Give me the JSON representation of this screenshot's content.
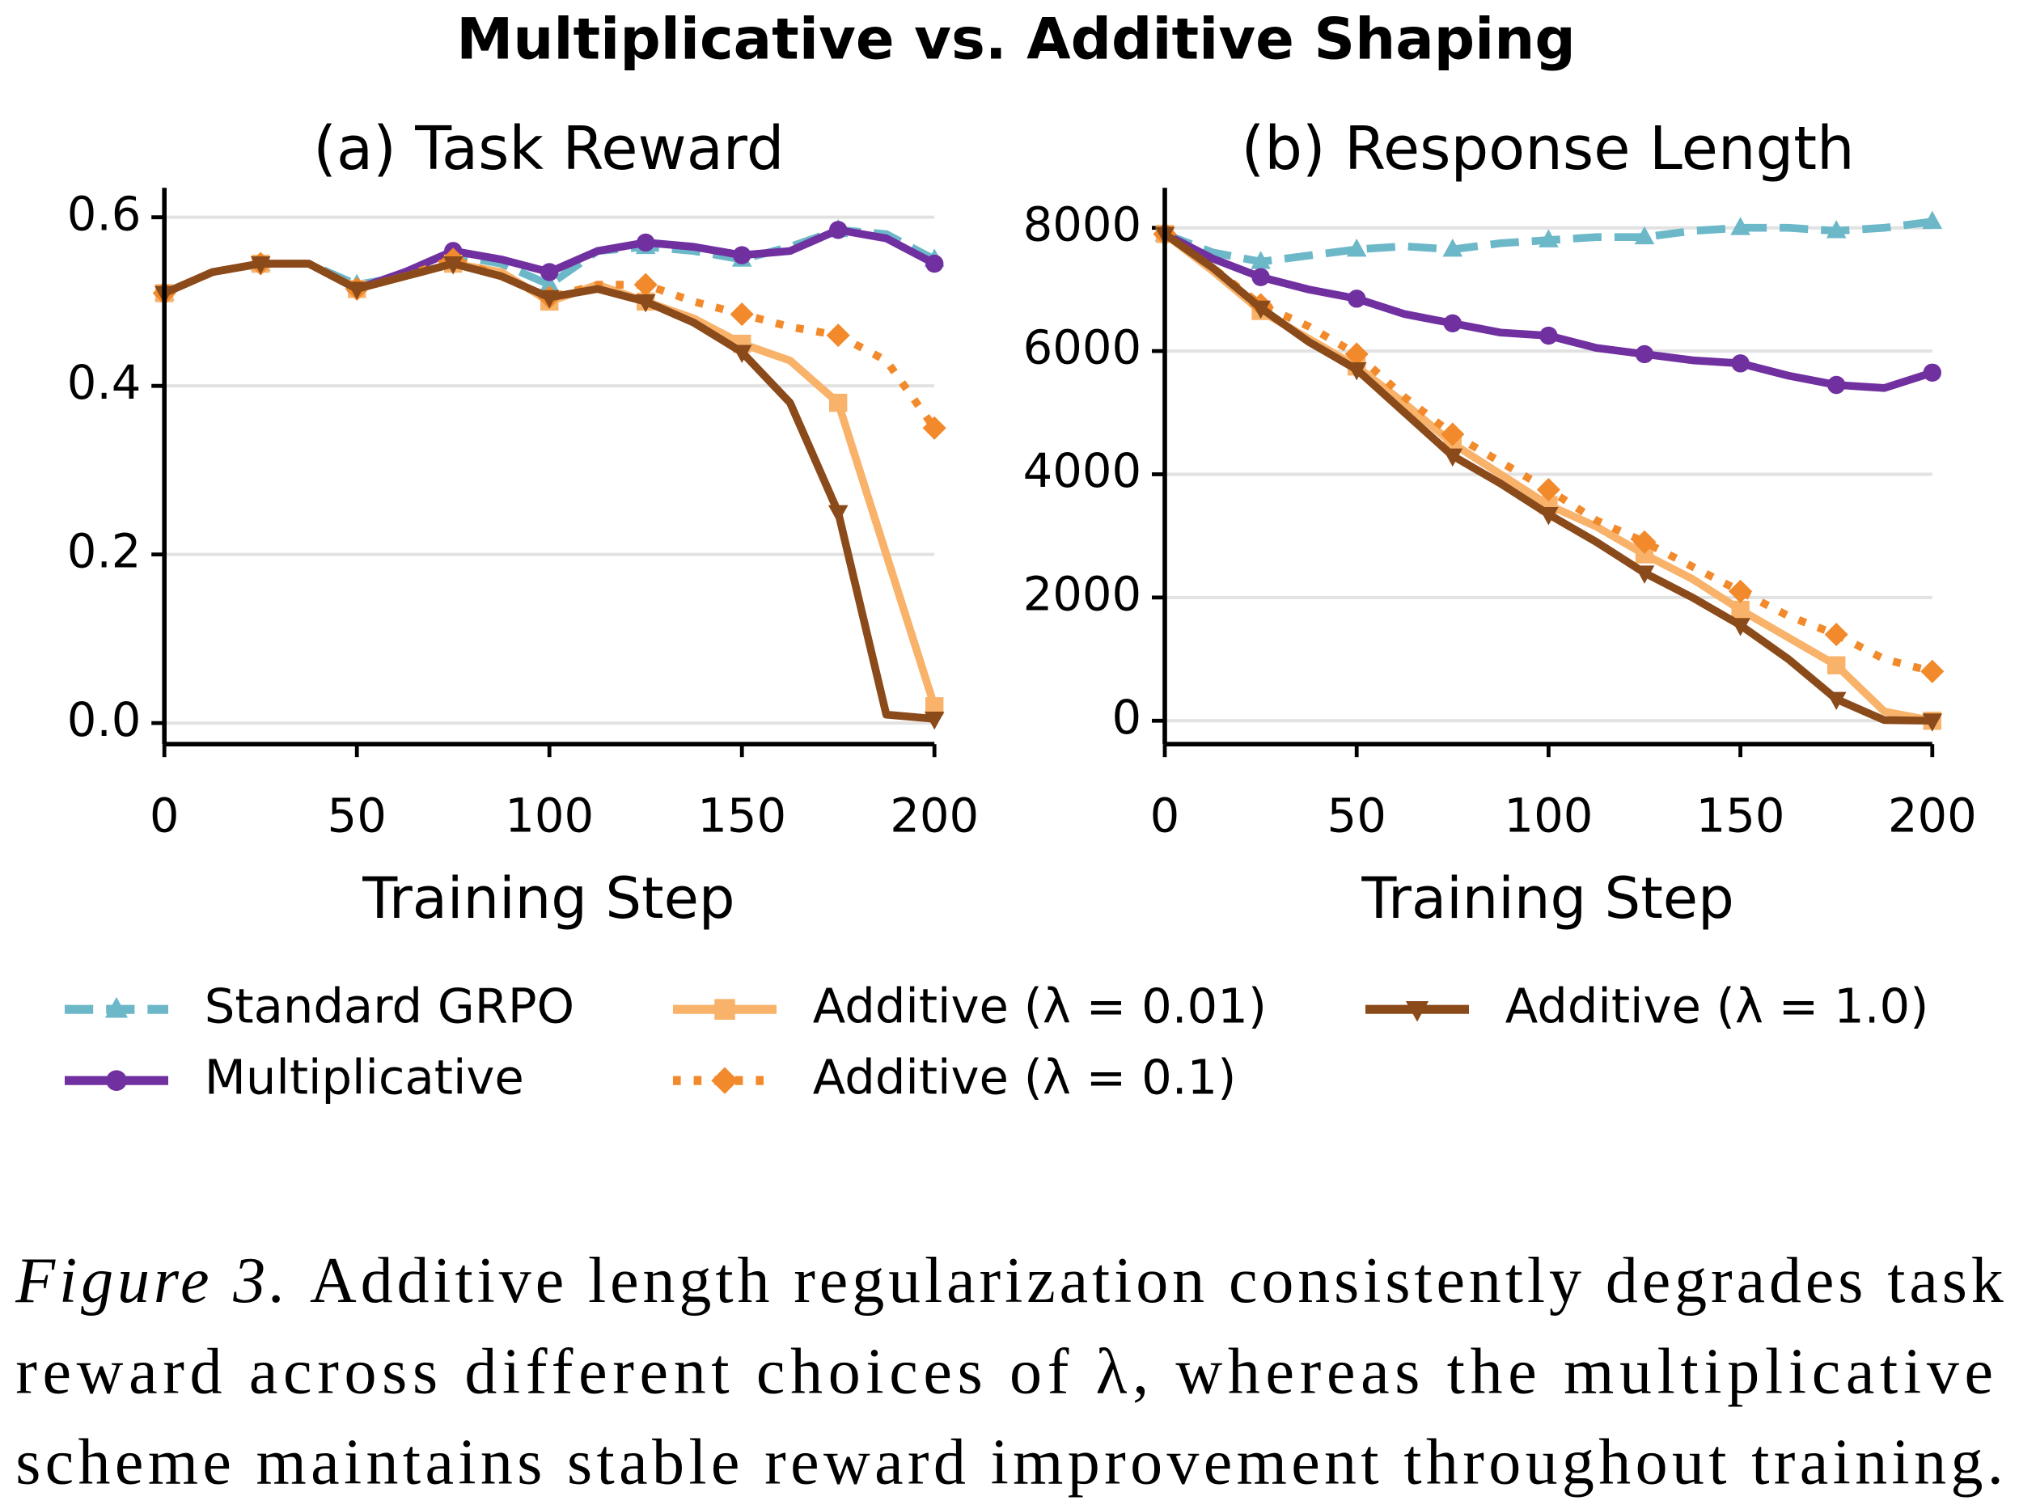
{
  "title": "Multiplicative vs. Additive Shaping",
  "chart_data": [
    {
      "type": "line",
      "title": "(a) Task Reward",
      "xlabel": "Training Step",
      "x": [
        0,
        12.5,
        25,
        37.5,
        50,
        62.5,
        75,
        87.5,
        100,
        112.5,
        125,
        137.5,
        150,
        162.5,
        175,
        187.5,
        200
      ],
      "xlim": [
        0,
        200
      ],
      "xticks": [
        0,
        50,
        100,
        150,
        200
      ],
      "ylim": [
        -0.025,
        0.635
      ],
      "yticks": [
        {
          "value": 0,
          "label": "0.0"
        },
        0.2,
        0.4,
        0.6
      ],
      "grid": true,
      "series": [
        {
          "name": "Standard GRPO",
          "color": "#6cb8c8",
          "style": "dashed",
          "marker": "triangle-up",
          "values": [
            0.51,
            0.535,
            0.545,
            0.545,
            0.52,
            0.53,
            0.555,
            0.545,
            0.52,
            0.56,
            0.565,
            0.56,
            0.55,
            0.565,
            0.585,
            0.58,
            0.55
          ]
        },
        {
          "name": "Multiplicative",
          "color": "#7030a0",
          "style": "solid",
          "marker": "circle",
          "values": [
            0.51,
            0.535,
            0.545,
            0.545,
            0.515,
            0.535,
            0.56,
            0.55,
            0.535,
            0.56,
            0.57,
            0.565,
            0.555,
            0.56,
            0.585,
            0.575,
            0.545
          ]
        },
        {
          "name": "Additive (λ = 0.01)",
          "color": "#f8b26a",
          "style": "solid",
          "marker": "square",
          "values": [
            0.51,
            0.535,
            0.545,
            0.545,
            0.515,
            0.53,
            0.545,
            0.535,
            0.5,
            0.52,
            0.5,
            0.48,
            0.45,
            0.43,
            0.38,
            0.2,
            0.02
          ]
        },
        {
          "name": "Additive (λ = 0.1)",
          "color": "#f28a2c",
          "style": "dotted",
          "marker": "diamond",
          "values": [
            0.51,
            0.535,
            0.545,
            0.545,
            0.515,
            0.53,
            0.55,
            0.53,
            0.505,
            0.52,
            0.52,
            0.5,
            0.485,
            0.47,
            0.46,
            0.43,
            0.35
          ]
        },
        {
          "name": "Additive (λ = 1.0)",
          "color": "#8b4a1a",
          "style": "solid",
          "marker": "triangle-down",
          "values": [
            0.51,
            0.535,
            0.545,
            0.545,
            0.515,
            0.53,
            0.545,
            0.53,
            0.505,
            0.515,
            0.5,
            0.475,
            0.44,
            0.38,
            0.25,
            0.01,
            0.005
          ]
        }
      ]
    },
    {
      "type": "line",
      "title": "(b) Response Length",
      "xlabel": "Training Step",
      "x": [
        0,
        12.5,
        25,
        37.5,
        50,
        62.5,
        75,
        87.5,
        100,
        112.5,
        125,
        137.5,
        150,
        162.5,
        175,
        187.5,
        200
      ],
      "xlim": [
        0,
        200
      ],
      "xticks": [
        0,
        50,
        100,
        150,
        200
      ],
      "ylim": [
        -380,
        8650
      ],
      "yticks": [
        0,
        2000,
        4000,
        6000,
        8000
      ],
      "grid": true,
      "series": [
        {
          "color": "#6cb8c8",
          "style": "dashed",
          "marker": "triangle-up",
          "values": [
            7900,
            7600,
            7450,
            7550,
            7650,
            7700,
            7650,
            7750,
            7800,
            7850,
            7850,
            7950,
            8000,
            8000,
            7950,
            8000,
            8100
          ]
        },
        {
          "color": "#7030a0",
          "style": "solid",
          "marker": "circle",
          "values": [
            7900,
            7500,
            7200,
            7000,
            6850,
            6600,
            6450,
            6300,
            6250,
            6050,
            5950,
            5850,
            5800,
            5600,
            5450,
            5400,
            5650
          ]
        },
        {
          "color": "#f8b26a",
          "style": "solid",
          "marker": "square",
          "values": [
            7900,
            7300,
            6650,
            6200,
            5750,
            5150,
            4500,
            4000,
            3500,
            3150,
            2700,
            2300,
            1800,
            1350,
            900,
            150,
            0
          ]
        },
        {
          "color": "#f28a2c",
          "style": "dotted",
          "marker": "diamond",
          "values": [
            7900,
            7350,
            6750,
            6400,
            5950,
            5250,
            4650,
            4200,
            3750,
            3250,
            2900,
            2500,
            2100,
            1700,
            1400,
            1000,
            800
          ]
        },
        {
          "color": "#8b4a1a",
          "style": "solid",
          "marker": "triangle-down",
          "values": [
            7900,
            7350,
            6700,
            6150,
            5700,
            5000,
            4300,
            3850,
            3350,
            2900,
            2400,
            2000,
            1550,
            1000,
            350,
            10,
            0
          ]
        }
      ]
    }
  ],
  "caption": {
    "label": "Figure 3.",
    "lines": [
      "Additive length regularization consistently degrades task",
      "reward across different choices of λ, whereas the multiplicative",
      "scheme maintains stable reward improvement throughout training."
    ]
  }
}
